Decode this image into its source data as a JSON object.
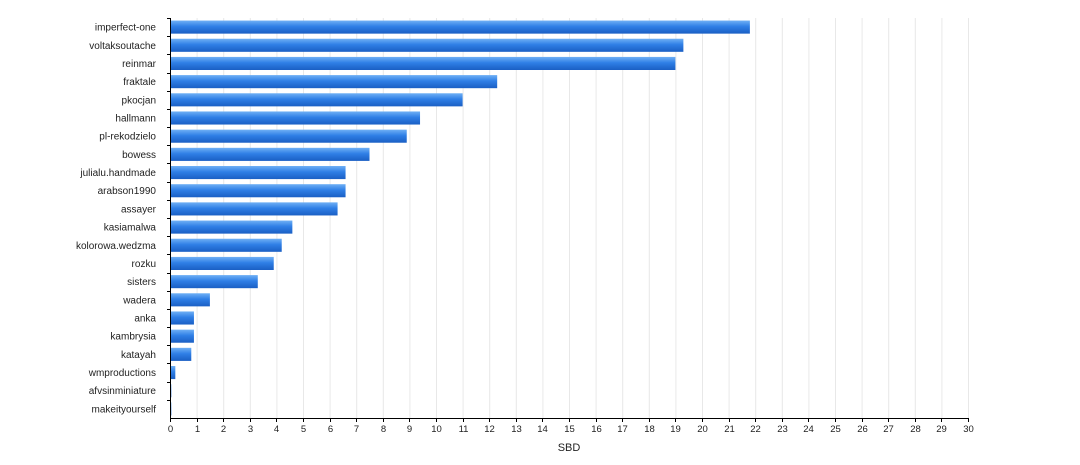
{
  "chart_data": {
    "type": "bar",
    "orientation": "horizontal",
    "categories": [
      "imperfect-one",
      "voltaksoutache",
      "reinmar",
      "fraktale",
      "pkocjan",
      "hallmann",
      "pl-rekodzielo",
      "bowess",
      "julialu.handmade",
      "arabson1990",
      "assayer",
      "kasiamalwa",
      "kolorowa.wedzma",
      "rozku",
      "sisters",
      "wadera",
      "anka",
      "kambrysia",
      "katayah",
      "wmproductions",
      "afvsinminiature",
      "makeityourself"
    ],
    "values": [
      21.8,
      19.3,
      19.0,
      12.3,
      11.0,
      9.4,
      8.9,
      7.5,
      6.6,
      6.6,
      6.3,
      4.6,
      4.2,
      3.9,
      3.3,
      1.5,
      0.9,
      0.9,
      0.8,
      0.2,
      0.05,
      0.05
    ],
    "xlabel": "SBD",
    "ylabel": "",
    "xlim": [
      0,
      30
    ],
    "xticks": [
      "0",
      "1",
      "2",
      "3",
      "4",
      "5",
      "6",
      "7",
      "8",
      "9",
      "10",
      "11",
      "12",
      "13",
      "14",
      "15",
      "16",
      "17",
      "18",
      "19",
      "20",
      "21",
      "22",
      "23",
      "24",
      "25",
      "26",
      "27",
      "28",
      "29",
      "30"
    ],
    "grid": true,
    "bar_color": "#2f7fe6",
    "bar_color_light": "#6fb0f5",
    "bar_color_dark": "#1a5fc4"
  }
}
